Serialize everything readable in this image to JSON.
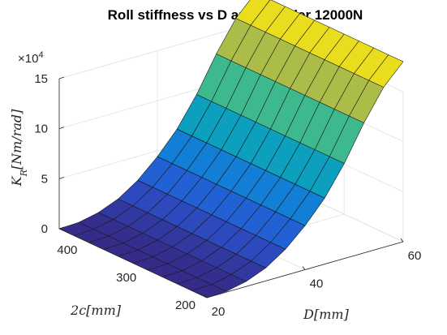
{
  "chart_data": {
    "type": "surface",
    "title": {
      "prefix": "Roll stiffness vs D and I",
      "subscript": "2",
      "suffix": " under 12000N"
    },
    "xlabel": "D[mm]",
    "ylabel": "2c[mm]",
    "zlabel": {
      "base": "K",
      "subscript": "R",
      "rest": "[Nm/rad]"
    },
    "x_range": [
      20,
      60
    ],
    "y_range": [
      200,
      450
    ],
    "z_range": [
      0,
      150000
    ],
    "x_ticks": [
      {
        "v": 20,
        "label": "20"
      },
      {
        "v": 40,
        "label": "40"
      },
      {
        "v": 60,
        "label": "60"
      }
    ],
    "y_ticks": [
      {
        "v": 200,
        "label": "200"
      },
      {
        "v": 300,
        "label": "300"
      },
      {
        "v": 400,
        "label": "400"
      }
    ],
    "z_ticks": [
      {
        "v": 0,
        "label": "0"
      },
      {
        "v": 50000,
        "label": "5"
      },
      {
        "v": 100000,
        "label": "10"
      },
      {
        "v": 150000,
        "label": "15"
      }
    ],
    "z_multiplier": {
      "base": "×10",
      "exponent": "4"
    },
    "grid": true,
    "colormap": "parula",
    "x_grid": [
      20,
      24,
      28,
      32,
      36,
      40,
      44,
      48,
      52,
      56,
      60
    ],
    "y_grid": [
      200,
      225,
      250,
      275,
      300,
      325,
      350,
      375,
      400,
      425,
      450
    ],
    "z_by_x": [
      0,
      800,
      5000,
      13000,
      26000,
      44000,
      66000,
      95000,
      130000,
      160000,
      180000
    ],
    "z_variation_with_y": "approximately constant"
  }
}
